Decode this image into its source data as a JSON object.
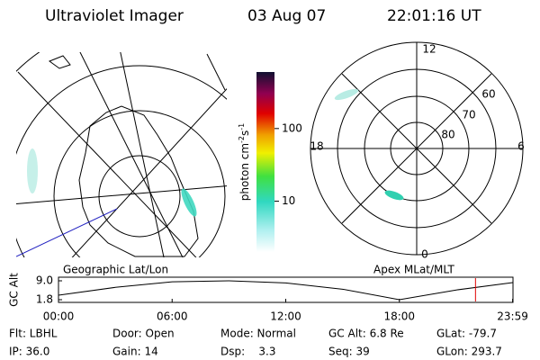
{
  "header": {
    "instrument": "Ultraviolet Imager",
    "date": "03 Aug 07",
    "time": "22:01:16 UT"
  },
  "colorbar": {
    "label": "photon cm",
    "exp1": "-2",
    "unit2": "s",
    "exp2": "-1",
    "ticks": [
      10,
      100
    ],
    "range": [
      2,
      600
    ],
    "log": true
  },
  "polar_plot": {
    "mlt_labels": [
      "12",
      "18",
      "6",
      "0"
    ],
    "lat_labels": [
      "60",
      "70",
      "80"
    ]
  },
  "panel_labels": {
    "left": "Geographic Lat/Lon",
    "right": "Apex MLat/MLT"
  },
  "altitude_plot": {
    "ylabel": "GC Alt",
    "yticks": [
      {
        "value": 9.0,
        "label": "9.0"
      },
      {
        "value": 1.8,
        "label": "1.8"
      }
    ],
    "ylim": [
      1.3,
      9.4
    ],
    "xlim": [
      0,
      24
    ],
    "xticks": [
      {
        "value": 0,
        "label": "00:00"
      },
      {
        "value": 6,
        "label": "06:00"
      },
      {
        "value": 12,
        "label": "12:00"
      },
      {
        "value": 18,
        "label": "18:00"
      },
      {
        "value": 23.98,
        "label": "23:59"
      }
    ],
    "x": [
      0,
      3,
      6,
      9,
      12,
      15,
      18,
      21,
      23.98
    ],
    "values": [
      3.5,
      6.5,
      8.6,
      9.0,
      8.2,
      5.8,
      1.8,
      5.5,
      8.3
    ],
    "color": "#000000",
    "current_time": 22.02,
    "current_color": "#e00000"
  },
  "info": [
    [
      "Flt: LBHL",
      "Door: Open",
      "Mode: Normal",
      "GC Alt: 6.8 Re",
      "GLat: -79.7"
    ],
    [
      "IP: 36.0",
      "Gain: 14",
      "Dsp:    3.3",
      "Seq: 39",
      "GLon: 293.7"
    ]
  ]
}
